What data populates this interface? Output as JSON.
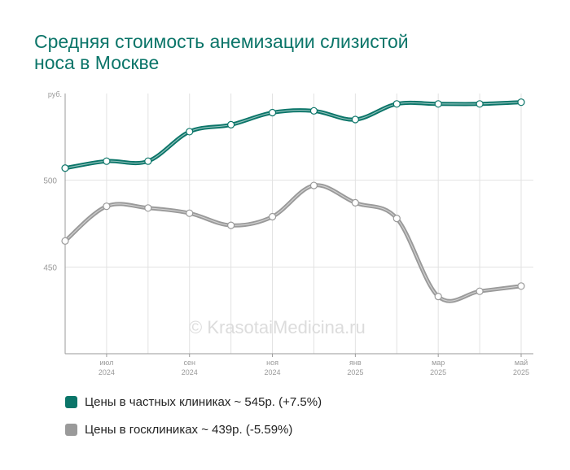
{
  "title_lines": [
    "Средняя стоимость анемизации слизистой",
    "носа в Москве"
  ],
  "watermark": "© KrasotaiMedicina.ru",
  "colors": {
    "private": "#0b7569",
    "public": "#9a9a9a",
    "grid": "#e2e2e2",
    "axis": "#9a9a9a",
    "tick_text": "#999999"
  },
  "chart_data": {
    "type": "line",
    "y_unit_label": "руб.",
    "ylim": [
      400,
      550
    ],
    "y_ticks": [
      450,
      500
    ],
    "x": [
      "2024-06",
      "2024-07",
      "2024-08",
      "2024-09",
      "2024-10",
      "2024-11",
      "2024-12",
      "2025-01",
      "2025-02",
      "2025-03",
      "2025-04",
      "2025-05"
    ],
    "x_tick_labels": [
      {
        "x": "2024-07",
        "month": "июл",
        "year": "2024"
      },
      {
        "x": "2024-09",
        "month": "сен",
        "year": "2024"
      },
      {
        "x": "2024-11",
        "month": "ноя",
        "year": "2024"
      },
      {
        "x": "2025-01",
        "month": "янв",
        "year": "2025"
      },
      {
        "x": "2025-03",
        "month": "мар",
        "year": "2025"
      },
      {
        "x": "2025-05",
        "month": "май",
        "year": "2025"
      }
    ],
    "grid": true,
    "legend_position": "bottom-left",
    "series": [
      {
        "key": "private",
        "name": "Цены в частных клиниках ~ 545р. (+7.5%)",
        "values": [
          507,
          511,
          511,
          528,
          532,
          539,
          540,
          535,
          544,
          544,
          544,
          545
        ]
      },
      {
        "key": "public",
        "name": "Цены в госклиниках ~ 439р. (-5.59%)",
        "values": [
          465,
          485,
          484,
          481,
          474,
          479,
          497,
          487,
          478,
          433,
          436,
          439
        ]
      }
    ]
  }
}
